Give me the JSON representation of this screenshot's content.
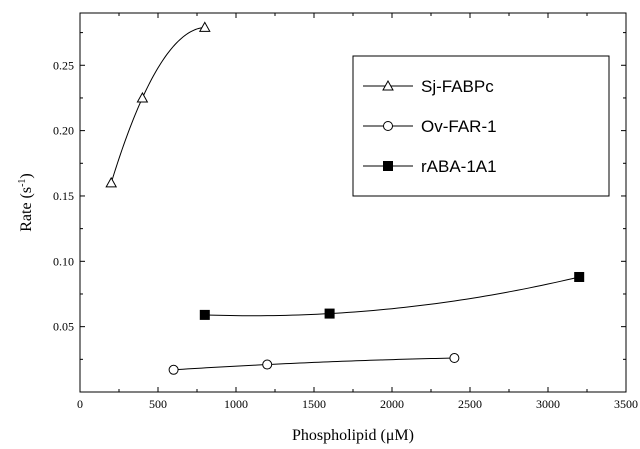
{
  "chart_data": {
    "type": "scatter",
    "xlabel": "Phospholipid (μM)",
    "ylabel": "Rate (s",
    "ylabel_sup": "-1",
    "ylabel_close": ")",
    "xlim": [
      0,
      3500
    ],
    "ylim": [
      0,
      0.29
    ],
    "xticks": [
      0,
      500,
      1000,
      1500,
      2000,
      2500,
      3000,
      3500
    ],
    "xtick_labels": [
      "0",
      "500",
      "1000",
      "1500",
      "2000",
      "2500",
      "3000",
      "3500"
    ],
    "yticks": [
      0.05,
      0.1,
      0.15,
      0.2,
      0.25
    ],
    "ytick_labels": [
      "0.05",
      "0.10",
      "0.15",
      "0.20",
      "0.25"
    ],
    "legend_position": "top-right",
    "grid": false,
    "series": [
      {
        "name": "Sj-FABPc",
        "marker": "open-triangle",
        "x": [
          200,
          400,
          800
        ],
        "y": [
          0.16,
          0.225,
          0.279
        ],
        "fit_curve": true
      },
      {
        "name": "Ov-FAR-1",
        "marker": "open-circle",
        "x": [
          600,
          1200,
          2400
        ],
        "y": [
          0.017,
          0.021,
          0.026
        ],
        "fit_curve": true
      },
      {
        "name": "rABA-1A1",
        "marker": "filled-square",
        "x": [
          800,
          1600,
          3200
        ],
        "y": [
          0.059,
          0.06,
          0.088
        ],
        "fit_curve": true
      }
    ]
  }
}
